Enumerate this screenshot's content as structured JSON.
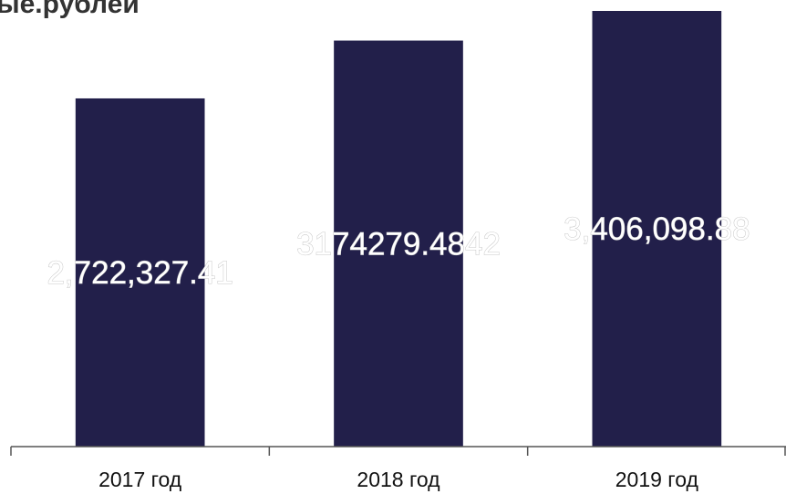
{
  "chart_data": {
    "type": "bar",
    "title": "ые.рублей",
    "categories": [
      "2017 год",
      "2018 год",
      "2019 год"
    ],
    "values": [
      2722327.41,
      3174279.4842,
      3406098.88
    ],
    "value_labels": [
      "2,722,327.41",
      "3174279.4842",
      "3,406,098.88"
    ],
    "color": "#221f4a"
  }
}
